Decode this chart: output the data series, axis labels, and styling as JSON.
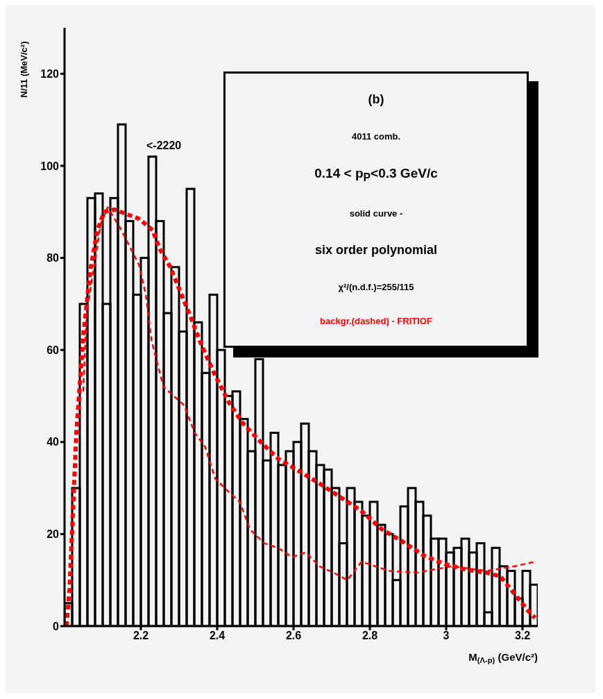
{
  "chart_data": {
    "type": "histogram",
    "xlabel": "M$_{(Λ-p)}$ (GeV/c²)",
    "ylabel": "N/11 (MeV/c²)",
    "bins": [
      2.0,
      2.02,
      2.04,
      2.06,
      2.08,
      2.1,
      2.12,
      2.14,
      2.16,
      2.18,
      2.2,
      2.22,
      2.24,
      2.26,
      2.28,
      2.3,
      2.32,
      2.34,
      2.36,
      2.38,
      2.4,
      2.42,
      2.44,
      2.46,
      2.48,
      2.5,
      2.52,
      2.54,
      2.56,
      2.58,
      2.6,
      2.62,
      2.64,
      2.66,
      2.68,
      2.7,
      2.72,
      2.74,
      2.76,
      2.78,
      2.8,
      2.82,
      2.84,
      2.86,
      2.88,
      2.9,
      2.92,
      2.94,
      2.96,
      2.98,
      3.0,
      3.02,
      3.04,
      3.06,
      3.08,
      3.1,
      3.12,
      3.14,
      3.16,
      3.18,
      3.2,
      3.22,
      3.24
    ],
    "values": [
      5,
      30,
      70,
      93,
      94,
      70,
      93,
      109,
      88,
      72,
      80,
      102,
      88,
      68,
      78,
      64,
      95,
      66,
      55,
      72,
      60,
      50,
      51,
      45,
      38,
      58,
      36,
      42,
      35,
      38,
      40,
      44,
      38,
      35,
      34,
      30,
      18,
      30,
      27,
      24,
      27,
      22,
      20,
      10,
      26,
      30,
      27,
      24,
      19,
      19,
      16,
      17,
      19,
      16,
      18,
      3,
      17,
      13,
      12,
      6,
      12,
      9
    ],
    "color": "#000000",
    "series": [
      {
        "type": "line",
        "color": "#ff0000",
        "line_style": "dashed",
        "x": [
          2.005,
          2.013,
          2.031,
          2.049,
          2.067,
          2.086,
          2.104,
          2.131,
          2.195,
          2.231,
          2.249,
          2.277,
          2.304,
          2.331,
          2.359,
          2.395,
          2.432,
          2.468,
          2.514,
          2.559,
          2.614,
          2.668,
          2.723,
          2.778,
          2.832,
          2.887,
          2.942,
          2.996,
          3.051,
          3.106,
          3.142,
          3.179,
          3.215,
          3.233
        ],
        "values": [
          0,
          8,
          42,
          63,
          77,
          86,
          90,
          90.5,
          88.5,
          86,
          82,
          78,
          72.5,
          67,
          61,
          54.4,
          48.4,
          44,
          40,
          36.4,
          33.7,
          31,
          28,
          25,
          21,
          18.3,
          15.3,
          13.5,
          12.3,
          11.6,
          10.8,
          7,
          3.3,
          1.8
        ]
      },
      {
        "type": "line",
        "color": "#ff0000",
        "line_style": "dashed",
        "x": [
          2.049,
          2.058,
          2.077,
          2.095,
          2.113,
          2.149,
          2.195,
          2.213,
          2.228,
          2.259,
          2.286,
          2.313,
          2.341,
          2.368,
          2.395,
          2.432,
          2.459,
          2.486,
          2.523,
          2.559,
          2.596,
          2.632,
          2.668,
          2.705,
          2.741,
          2.778,
          2.814,
          2.851,
          2.923,
          3.015,
          3.106,
          3.179,
          3.233
        ],
        "values": [
          51,
          68,
          78,
          87.5,
          91,
          86,
          78.5,
          72,
          62,
          52,
          50,
          48,
          42,
          39,
          32,
          29,
          27,
          21,
          18,
          17,
          15,
          16,
          13,
          11.6,
          10,
          14,
          13,
          12,
          11.6,
          13,
          12,
          13,
          14
        ]
      }
    ],
    "xlim": [
      2.0,
      3.24
    ],
    "xticks": [
      2.2,
      2.4,
      2.6,
      2.8,
      3,
      3.2
    ],
    "ylim": [
      0,
      130
    ],
    "yticks": [
      0,
      20,
      40,
      60,
      80,
      100,
      120
    ],
    "grid": false,
    "annotations": [
      "<-2220",
      "(b)",
      "4011 comb.",
      "0.14 < p$_{P}$<0.3 GeV/c",
      "solid curve -",
      "six order polynomial",
      "χ²/(n.d.f.)=255/115",
      "backgr.(dashed) - FRITIOF"
    ]
  }
}
